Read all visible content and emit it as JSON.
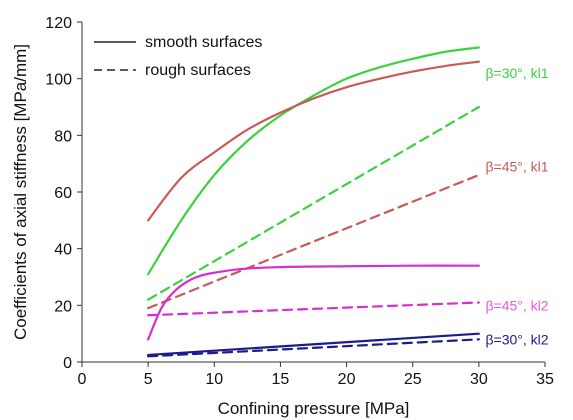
{
  "chart_data": {
    "type": "line",
    "title": "",
    "xlabel": "Confining pressure [MPa]",
    "ylabel": "Coefficients of axial stiffness [MPa/mm]",
    "xlim": [
      0,
      35
    ],
    "ylim": [
      0,
      120
    ],
    "xticks": [
      "0",
      "5",
      "10",
      "15",
      "20",
      "25",
      "30",
      "35"
    ],
    "yticks": [
      "0",
      "20",
      "40",
      "60",
      "80",
      "100",
      "120"
    ],
    "grid": false,
    "legend": {
      "placement": "top-left",
      "entries": [
        {
          "label": "smooth surfaces",
          "style": "solid"
        },
        {
          "label": "rough surfaces",
          "style": "dashed"
        }
      ]
    },
    "series": [
      {
        "name": "β=30°, kl1",
        "surface": "smooth",
        "style": "solid",
        "color": "#3dd13d",
        "x": [
          5,
          7.5,
          10,
          12.5,
          15,
          17.5,
          20,
          22.5,
          25,
          27.5,
          30
        ],
        "y": [
          31,
          50,
          66,
          78,
          87,
          94,
          100,
          104,
          107,
          109.5,
          111
        ]
      },
      {
        "name": "β=30°, kl1",
        "surface": "rough",
        "style": "dashed",
        "color": "#3dd13d",
        "x": [
          5,
          30
        ],
        "y": [
          22,
          90
        ]
      },
      {
        "name": "β=45°, kl1",
        "surface": "smooth",
        "style": "solid",
        "color": "#c85a58",
        "x": [
          5,
          7.5,
          10,
          12.5,
          15,
          17.5,
          20,
          22.5,
          25,
          27.5,
          30
        ],
        "y": [
          50,
          65,
          74,
          82,
          88,
          93,
          97,
          100,
          102.5,
          104.5,
          106
        ]
      },
      {
        "name": "β=45°, kl1",
        "surface": "rough",
        "style": "dashed",
        "color": "#c85a58",
        "x": [
          5,
          30
        ],
        "y": [
          19,
          66
        ]
      },
      {
        "name": "β=45°, kl2",
        "surface": "smooth",
        "style": "solid",
        "color": "#d62fd0",
        "x": [
          5,
          6,
          7,
          8,
          9,
          10,
          12,
          15,
          20,
          25,
          30
        ],
        "y": [
          8,
          19,
          25,
          28.5,
          30.5,
          31.5,
          32.8,
          33.5,
          33.8,
          34,
          34
        ]
      },
      {
        "name": "β=45°, kl2",
        "surface": "rough",
        "style": "dashed",
        "color": "#d62fd0",
        "x": [
          5,
          30
        ],
        "y": [
          16.5,
          21
        ]
      },
      {
        "name": "β=30°, kl2",
        "surface": "smooth",
        "style": "solid",
        "color": "#1c1c8c",
        "x": [
          5,
          30
        ],
        "y": [
          2.5,
          10
        ]
      },
      {
        "name": "β=30°, kl2",
        "surface": "rough",
        "style": "dashed",
        "color": "#1c1c8c",
        "x": [
          5,
          30
        ],
        "y": [
          2,
          8
        ]
      }
    ],
    "annotations": [
      {
        "text": "β=30°, kl1",
        "color": "#3dd13d",
        "x": 30.5,
        "y": 102
      },
      {
        "text": "β=45°, kl1",
        "color": "#c85a58",
        "x": 30.5,
        "y": 69
      },
      {
        "text": "β=45°, kl2",
        "color": "#e060dc",
        "x": 30.5,
        "y": 20
      },
      {
        "text": "β=30°, kl2",
        "color": "#1c1c8c",
        "x": 30.5,
        "y": 8
      }
    ]
  }
}
